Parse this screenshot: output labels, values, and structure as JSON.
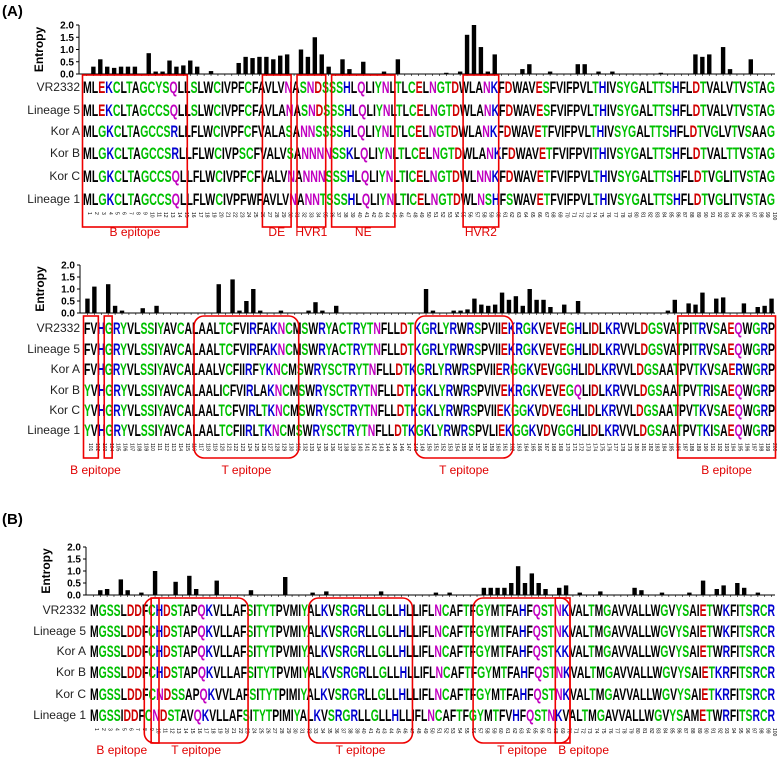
{
  "colors": {
    "polar": "#00c000",
    "basic": "#0000d0",
    "acidic": "#d00000",
    "amide": "#c000c0",
    "hydrophobic": "#000000",
    "box": "#ee0000"
  },
  "axis": {
    "ylabel": "Entropy",
    "ticks": [
      "0.0",
      "0.5",
      "1.0",
      "1.5",
      "2.0"
    ]
  },
  "panels": [
    {
      "label": "(A)",
      "start": 1,
      "rows": [
        {
          "name": "VR2332",
          "seq": "MLEKCLTAGCYSQLLSLWCIVPFCFAVLVNASNDSSSHLQLIYNLTLCELNGTDWLANKFDWAVESFVIFPVLTHIVSYGALTTSHFLDTVALVTVSTAG"
        },
        {
          "name": "Lineage 5",
          "seq": "MLEKCLTAGCCSQLLSLWCIVPFCFAVLANASNDSSSHLQLIYNLTLCELNGTDWLANKFDWAVESFVIFPVLTHIVSYGALTTSHFLDTVALVTVSTAG"
        },
        {
          "name": "Kor A",
          "seq": "MLGKCLTAGCCSRLLFLWCIVPFCFVALASANNSSSSHLQLIYNLTLCELNGTDWLANKFDWAVETFVIFPVLTHIVSYGALTTSHFLDTVGLVTVSAAG"
        },
        {
          "name": "Kor B",
          "seq": "MLGKCLTAGCCSRLLFLWCIVPSCFVALVSANNNNSSKLQLIYNLTLCELNGTDWLANKFDWAVETFVIFPVITHIVSYGALTTSHFLDTVALTTVSTAG"
        },
        {
          "name": "Kor C",
          "seq": "MLGKCLTAGCCSQLLFLWCIVPFCFVALVNANNNSSSHLQLIYNLTICELNGTDWLNNKFDWAVETFVIFPVLTHIVSYGALTTSHFLDTVGLITVSTAG"
        },
        {
          "name": "Lineage 1",
          "seq": "MLGKCLTAGCCSQLLFLWCIVPFWFAVLVNANNTSSSHLQLIYNLTICELNGTDWLNSHFSWAVETFVIFPVLTHIVSYGALTTSHFLDTVGLITVSTAG"
        }
      ],
      "entropy": [
        0,
        0.3,
        0.6,
        0.3,
        0.25,
        0.3,
        0.3,
        0.3,
        0,
        0.85,
        0.1,
        0.1,
        0.55,
        0.3,
        0.35,
        0.55,
        0.3,
        0,
        0.12,
        0,
        0,
        0,
        0.45,
        0.7,
        0.65,
        0.7,
        0.7,
        0.6,
        0.75,
        0.8,
        0,
        1.0,
        0.7,
        1.5,
        0.8,
        0.3,
        0,
        0.6,
        0.2,
        0,
        0.5,
        0,
        0,
        0.1,
        0,
        0.6,
        0,
        0,
        0,
        0,
        0,
        0,
        0.05,
        0,
        0.1,
        1.6,
        2.0,
        1.1,
        0.1,
        0.8,
        0,
        0,
        0,
        0.2,
        0.4,
        0,
        0,
        0.1,
        0,
        0,
        0,
        0.4,
        0.4,
        0,
        0.1,
        0,
        0.1,
        0,
        0,
        0,
        0,
        0,
        0,
        0.05,
        0,
        0,
        0,
        0,
        0.8,
        0.7,
        0.8,
        0,
        1.1,
        0.2,
        0,
        0,
        0.6,
        0,
        0,
        0
      ],
      "annotations": [
        {
          "label": "B epitope",
          "from": 1,
          "to": 15,
          "shape": "rect"
        },
        {
          "label": "DE",
          "from": 27,
          "to": 30,
          "shape": "rect"
        },
        {
          "label": "HVR1",
          "from": 32,
          "to": 35,
          "shape": "rect"
        },
        {
          "label": "NE",
          "from": 37,
          "to": 45,
          "shape": "rect"
        },
        {
          "label": "HVR2",
          "from": 56,
          "to": 60,
          "shape": "rect"
        }
      ]
    },
    {
      "label": "",
      "start": 101,
      "rows": [
        {
          "name": "VR2332",
          "seq": "FVHGRYVLSSIYAVCALAALTCFVIRFAKNCMSWRYACTRYTNFLLDTKGRLYRWRSPVIIEKRGKVEVEGHLIDLKRVVLDGSVATPITRVSAEQWGRP"
        },
        {
          "name": "Lineage 5",
          "seq": "FVHGRYVLSSIYAVCALAALTCFVIRFAKNCMSWRYACTRYTNFLLDTKGRLYRWRSPVIIEKRGKVEVEGHLIDLKRVVLDGSVATPITRVSAEQWGRP"
        },
        {
          "name": "Kor A",
          "seq": "FVHGRYVLSSIYAVCALAALVCFIIRFYKNCMSWRYSCTRYTNFLLDTKGRLYRWRSPVIIERGGKVEVGGHLIDLKRVVLDGSAATPVTKVSAERWGRP"
        },
        {
          "name": "Kor B",
          "seq": "YVHGRYVLSSIYAVCALAALICFVIRLAKNCMSWRYSCTRYTNFLLDTKGKLYRWRSPVIVEKRGKVEVEGQLIDLKRVVLDGSAATPVTRISAEQWGRP"
        },
        {
          "name": "Kor C",
          "seq": "YVHGRYVLSSIYAVCALAALTCFVIRLTKNCMSWRYSCTRYTNFLLDTKGKLYRWRSPVIIEKGGKVDVEGHLIDLKRVVLDGSAATPVTKVSAEQWGRP"
        },
        {
          "name": "Lineage 1",
          "seq": "YVHGRYVLSSIYAVCALAALTCFIIRLTKNCMSWRYSCTRYTNFLLDTKGKLYRWRSPVLIEKGGKVDVGGHLIDLKRVVLDGSAATPVTKISAEQWGRP"
        }
      ],
      "entropy": [
        0.6,
        1.1,
        0,
        1.2,
        0.3,
        0.1,
        0,
        0,
        0.2,
        0,
        0.3,
        0,
        0,
        0,
        0,
        0,
        0,
        0,
        0,
        1.2,
        0,
        1.4,
        0.1,
        0.5,
        1.0,
        0.1,
        0,
        0,
        0.1,
        0,
        0,
        0,
        0.1,
        0.45,
        0.1,
        0,
        0.3,
        0,
        0,
        0,
        0,
        0,
        0,
        0,
        0,
        0,
        0,
        0,
        0,
        1.0,
        0.1,
        0,
        0,
        0.1,
        0.1,
        0.15,
        0.6,
        0.35,
        0.3,
        0.35,
        0.85,
        0.55,
        0.7,
        0.3,
        1.0,
        0.55,
        0.55,
        0.25,
        0,
        0.35,
        0,
        0.5,
        0,
        0,
        0,
        0,
        0,
        0,
        0,
        0,
        0,
        0,
        0,
        0,
        0.1,
        0.55,
        0,
        0.4,
        0.35,
        0.85,
        0,
        0.6,
        0.65,
        0,
        0,
        0.4,
        0,
        0.25,
        0.3,
        0.6
      ],
      "annotations": [
        {
          "label": "B epitope",
          "from": 101,
          "to": 102,
          "shape": "rect"
        },
        {
          "label": "",
          "from": 104,
          "to": 104,
          "shape": "rect"
        },
        {
          "label": "T epitope",
          "from": 117,
          "to": 131,
          "shape": "round"
        },
        {
          "label": "T epitope",
          "from": 149,
          "to": 162,
          "shape": "round"
        },
        {
          "label": "B epitope",
          "from": 187,
          "to": 200,
          "shape": "rect"
        }
      ]
    },
    {
      "label": "(B)",
      "start": 1,
      "rows": [
        {
          "name": "VR2332",
          "seq": "MGSSLDDFCHDSTAPQKVLLAFSITYTPVMIYALKVSRGRLLGLLHLLIFLNCAFTFGYMTFAHFQSTNKVALTMGAVVALLWGVYSAIETWKFITSRCR"
        },
        {
          "name": "Lineage 5",
          "seq": "MGSSLDDFCHDSTAPQKVLLAFSITYTPVMIYALKVSRGRLLGLLHLLIFLNCAFTFGYMTFAHFQSTNKVALTMGAVVALLWGVYSAIETWKFITSRCR"
        },
        {
          "name": "Kor A",
          "seq": "MGSSLDDFCHDSTAPQKVLLAFSITYTPVMIYALKVSRGRLLGLLHLLIFLNCAFTFGYMTFAHFQSTKKVALTMGAVVALLWGVYSAIETWRFITSRCR"
        },
        {
          "name": "Kor B",
          "seq": "MGSSLDDFCHDSTAPQKVLLAFSITYTPVMIYALKVSRGRLLGLLHLLIFLNCAFTFGYMTFAHFQSTNKVALTMGAVVALLWGVYSAIETKRFITSRCR"
        },
        {
          "name": "Kor C",
          "seq": "MGSSLDDFCNDSSAPQKVVLAFSITYTPIMIYALKVSRGRLLGLLHLLIFLNCAFTFGYMTFAHFQSTNKVALTMGAVVALLWGVYSAIETKRFITSRCR"
        },
        {
          "name": "Lineage 1",
          "seq": "MGSSIDDFCNDSTAVQKVLLAFSITYTPIMIYALKVSRGRLLGLLHLLIFLNCAFTFGYMTFVHFQSTNKVALTMGAVVALLWGVYSAMETWRFITSRCR"
        }
      ],
      "entropy": [
        0,
        0.2,
        0.25,
        0,
        0.65,
        0.2,
        0,
        0.1,
        0,
        1.0,
        0,
        0,
        0.55,
        0,
        0.8,
        0.25,
        0,
        0,
        0.6,
        0,
        0,
        0,
        0,
        0.2,
        0,
        0,
        0,
        0,
        0.75,
        0,
        0,
        0,
        0.1,
        0,
        0.15,
        0,
        0,
        0,
        0,
        0,
        0,
        0,
        0.15,
        0,
        0,
        0,
        0,
        0,
        0,
        0,
        0.1,
        0,
        0.1,
        0,
        0,
        0,
        0,
        0.3,
        0.3,
        0.3,
        0.3,
        0.5,
        1.2,
        0.5,
        0.9,
        0.5,
        0.25,
        0,
        0.3,
        0.4,
        0,
        0.1,
        0,
        0,
        0.15,
        0,
        0,
        0,
        0,
        0.3,
        0.2,
        0,
        0,
        0.1,
        0,
        0,
        0,
        0.1,
        0,
        0.6,
        0,
        0.25,
        0.4,
        0,
        0.5,
        0.3,
        0,
        0.1,
        0,
        0
      ],
      "annotations": [
        {
          "label": "B epitope",
          "from": 10,
          "to": 10,
          "shape": "rect"
        },
        {
          "label": "T epitope",
          "from": 9,
          "to": 23,
          "shape": "round"
        },
        {
          "label": "T epitope",
          "from": 33,
          "to": 47,
          "shape": "round"
        },
        {
          "label": "T epitope",
          "from": 57,
          "to": 70,
          "shape": "round"
        },
        {
          "label": "B epitope",
          "from": 69,
          "to": 70,
          "shape": "rect"
        }
      ]
    }
  ]
}
